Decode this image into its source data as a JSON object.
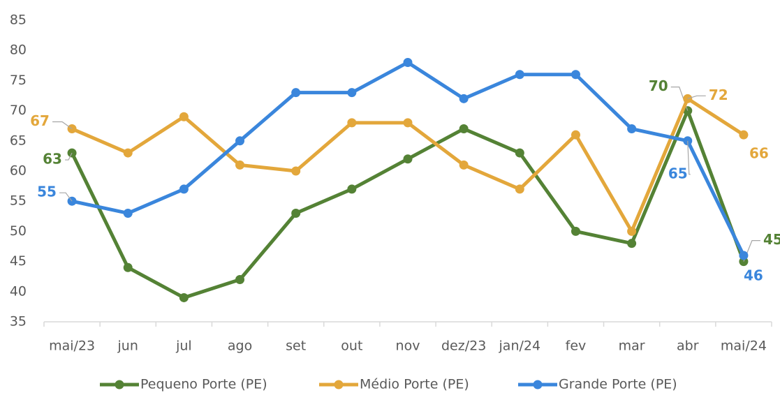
{
  "chart_data": {
    "type": "line",
    "categories": [
      "mai/23",
      "jun",
      "jul",
      "ago",
      "set",
      "out",
      "nov",
      "dez/23",
      "jan/24",
      "fev",
      "mar",
      "abr",
      "mai/24"
    ],
    "series": [
      {
        "name": "Pequeno Porte (PE)",
        "color": "#548235",
        "values": [
          63,
          44,
          39,
          42,
          53,
          57,
          62,
          67,
          63,
          50,
          48,
          70,
          45
        ],
        "data_labels": [
          0,
          11,
          12
        ]
      },
      {
        "name": "Médio Porte (PE)",
        "color": "#e3a73b",
        "values": [
          67,
          63,
          69,
          61,
          60,
          68,
          68,
          61,
          57,
          66,
          50,
          72,
          66
        ],
        "data_labels": [
          0,
          11,
          12
        ]
      },
      {
        "name": "Grande Porte (PE)",
        "color": "#3a86dc",
        "values": [
          55,
          53,
          57,
          65,
          73,
          73,
          78,
          72,
          76,
          76,
          67,
          65,
          46
        ],
        "data_labels": [
          0,
          11,
          12
        ]
      }
    ],
    "ylim": [
      35,
      85
    ],
    "yticks": [
      35,
      40,
      45,
      50,
      55,
      60,
      65,
      70,
      75,
      80,
      85
    ],
    "grid": false,
    "legend": "bottom"
  }
}
